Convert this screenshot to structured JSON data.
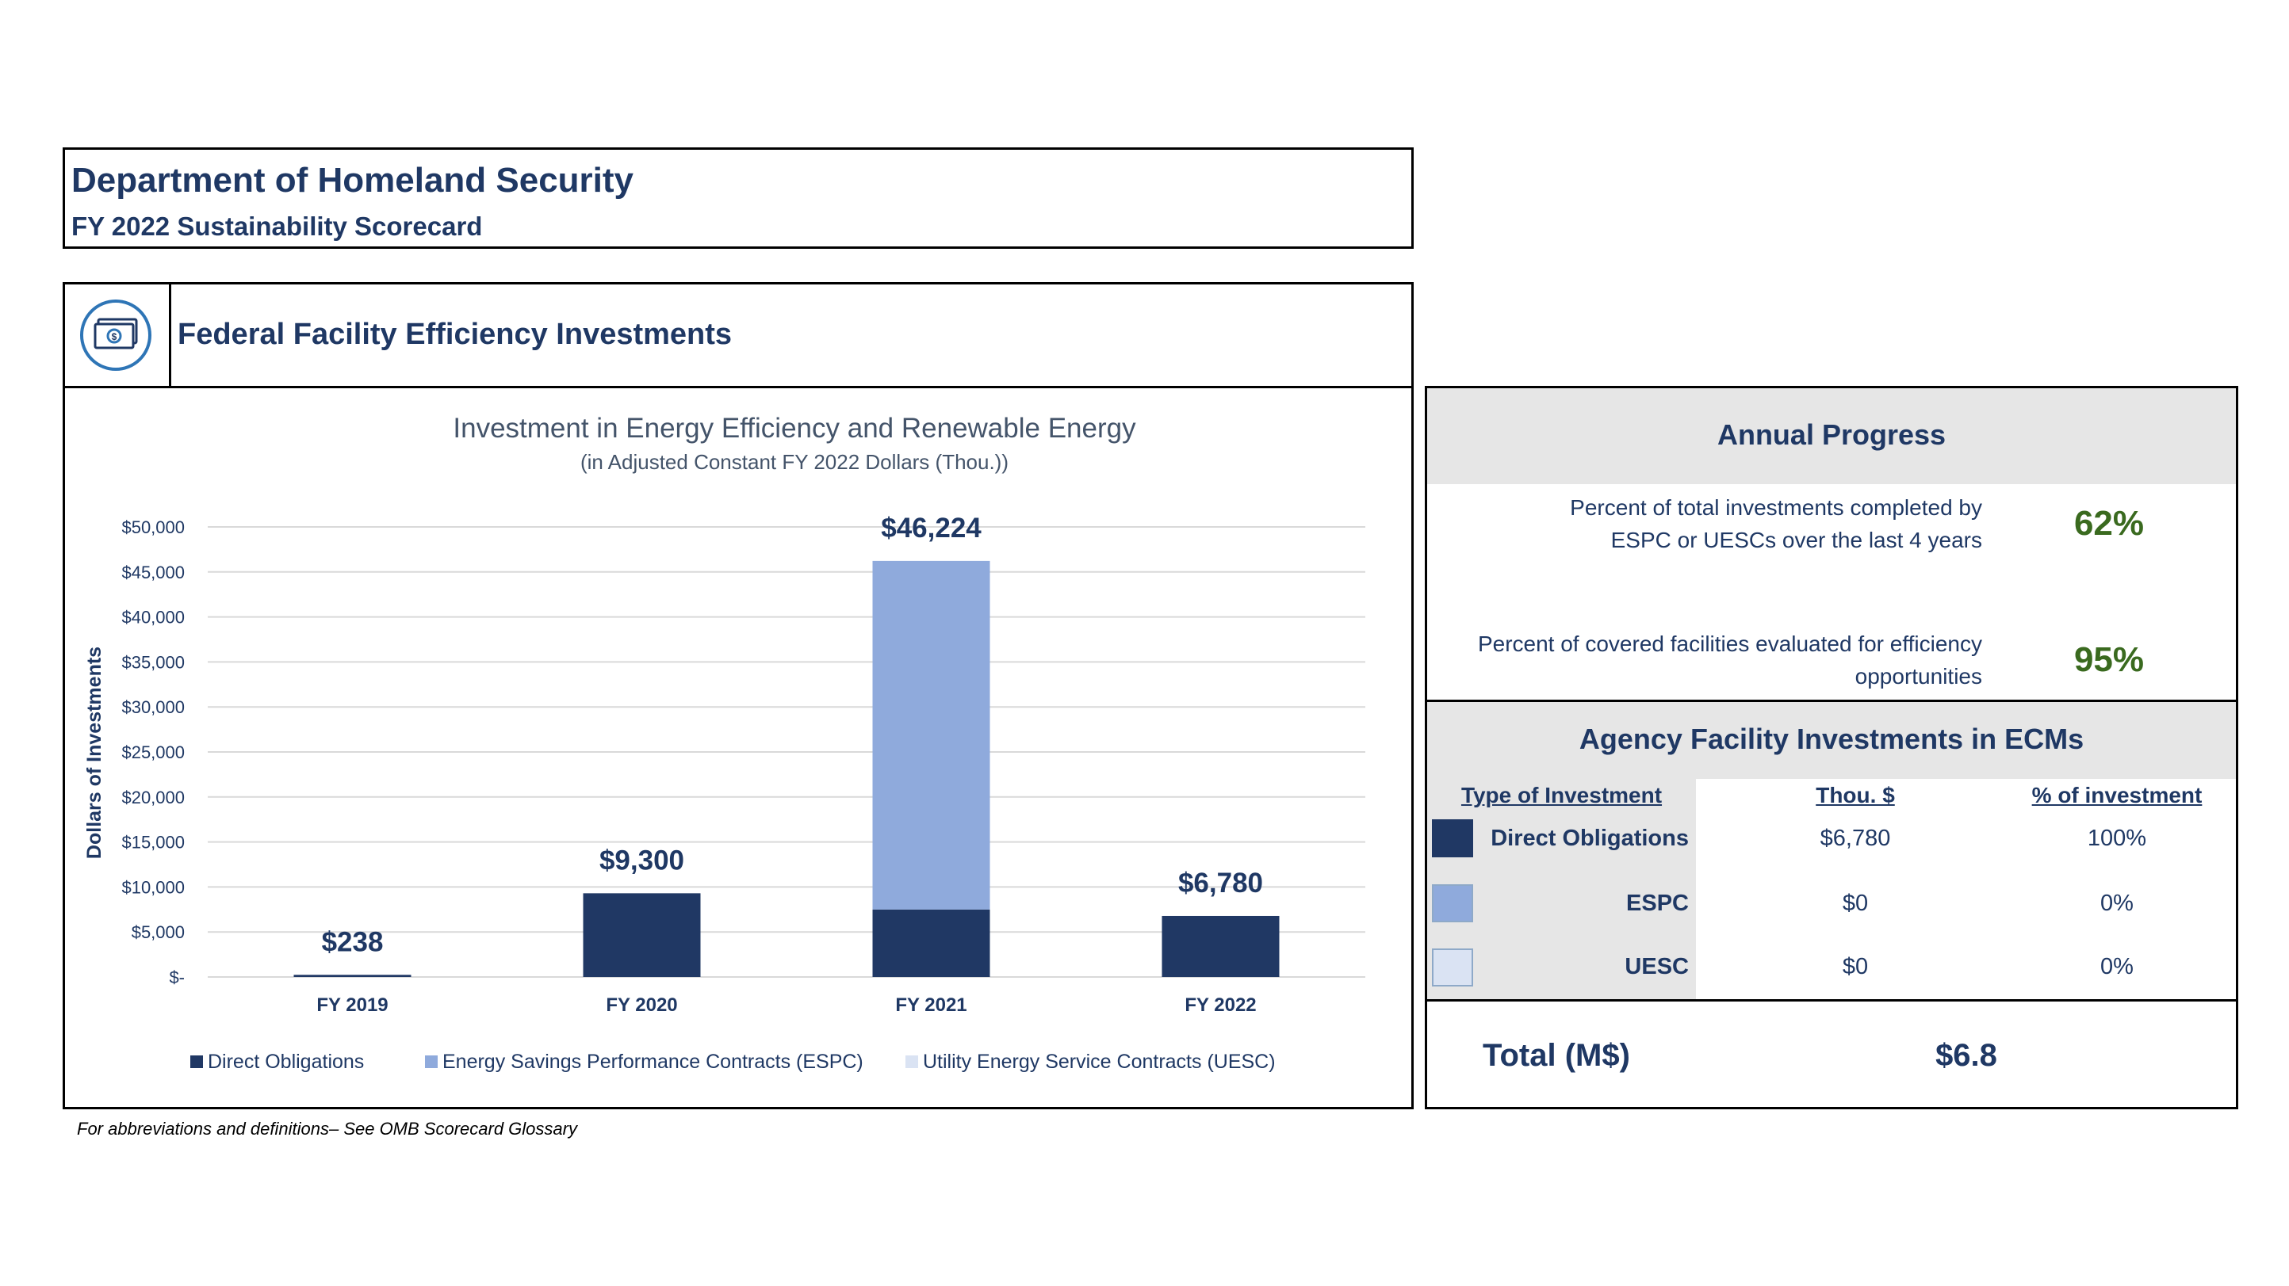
{
  "header": {
    "title": "Department of Homeland Security",
    "subtitle": "FY 2022 Sustainability Scorecard"
  },
  "section": {
    "title": "Federal Facility Efficiency Investments",
    "icon": "money-bill-icon"
  },
  "chart_data": {
    "type": "bar",
    "stacked": true,
    "title": "Investment in Energy Efficiency and Renewable Energy",
    "subtitle": "(in Adjusted Constant FY 2022 Dollars (Thou.))",
    "ylabel": "Dollars of Investments",
    "xlabel": "",
    "categories": [
      "FY 2019",
      "FY 2020",
      "FY 2021",
      "FY 2022"
    ],
    "series": [
      {
        "name": "Direct Obligations",
        "values": [
          238,
          9300,
          7500,
          6780
        ],
        "color": "#203864"
      },
      {
        "name": "Energy Savings Performance Contracts (ESPC)",
        "values": [
          0,
          0,
          38724,
          0
        ],
        "color": "#8faadc"
      },
      {
        "name": "Utility Energy Service Contracts (UESC)",
        "values": [
          0,
          0,
          0,
          0
        ],
        "color": "#dae3f3"
      }
    ],
    "totals_labels": [
      "$238",
      "$9,300",
      "$46,224",
      "$6,780"
    ],
    "totals": [
      238,
      9300,
      46224,
      6780
    ],
    "ylim": [
      0,
      50000
    ],
    "yticks": [
      0,
      5000,
      10000,
      15000,
      20000,
      25000,
      30000,
      35000,
      40000,
      45000,
      50000
    ],
    "ytick_labels": [
      "$-",
      "$5,000",
      "$10,000",
      "$15,000",
      "$20,000",
      "$25,000",
      "$30,000",
      "$35,000",
      "$40,000",
      "$45,000",
      "$50,000"
    ],
    "grid": true,
    "legend": "bottom"
  },
  "annual_progress": {
    "title": "Annual Progress",
    "rows": [
      {
        "desc_line1": "Percent of total investments completed by",
        "desc_line2": "ESPC or UESCs over the last 4 years",
        "value": "62%"
      },
      {
        "desc_line1": "Percent of covered facilities evaluated for efficiency",
        "desc_line2": "opportunities",
        "value": "95%"
      }
    ]
  },
  "ecm": {
    "title": "Agency Facility Investments in ECMs",
    "headers": {
      "type": "Type of Investment",
      "thou": "Thou. $",
      "pct": "% of investment"
    },
    "rows": [
      {
        "label": "Direct Obligations",
        "thou": "$6,780",
        "pct": "100%",
        "color": "#203864"
      },
      {
        "label": "ESPC",
        "thou": "$0",
        "pct": "0%",
        "color": "#8faadc"
      },
      {
        "label": "UESC",
        "thou": "$0",
        "pct": "0%",
        "color": "#dae3f3"
      }
    ],
    "total_label": "Total (M$)",
    "total_value": "$6.8"
  },
  "footnote": "For abbreviations and definitions– See OMB Scorecard Glossary"
}
